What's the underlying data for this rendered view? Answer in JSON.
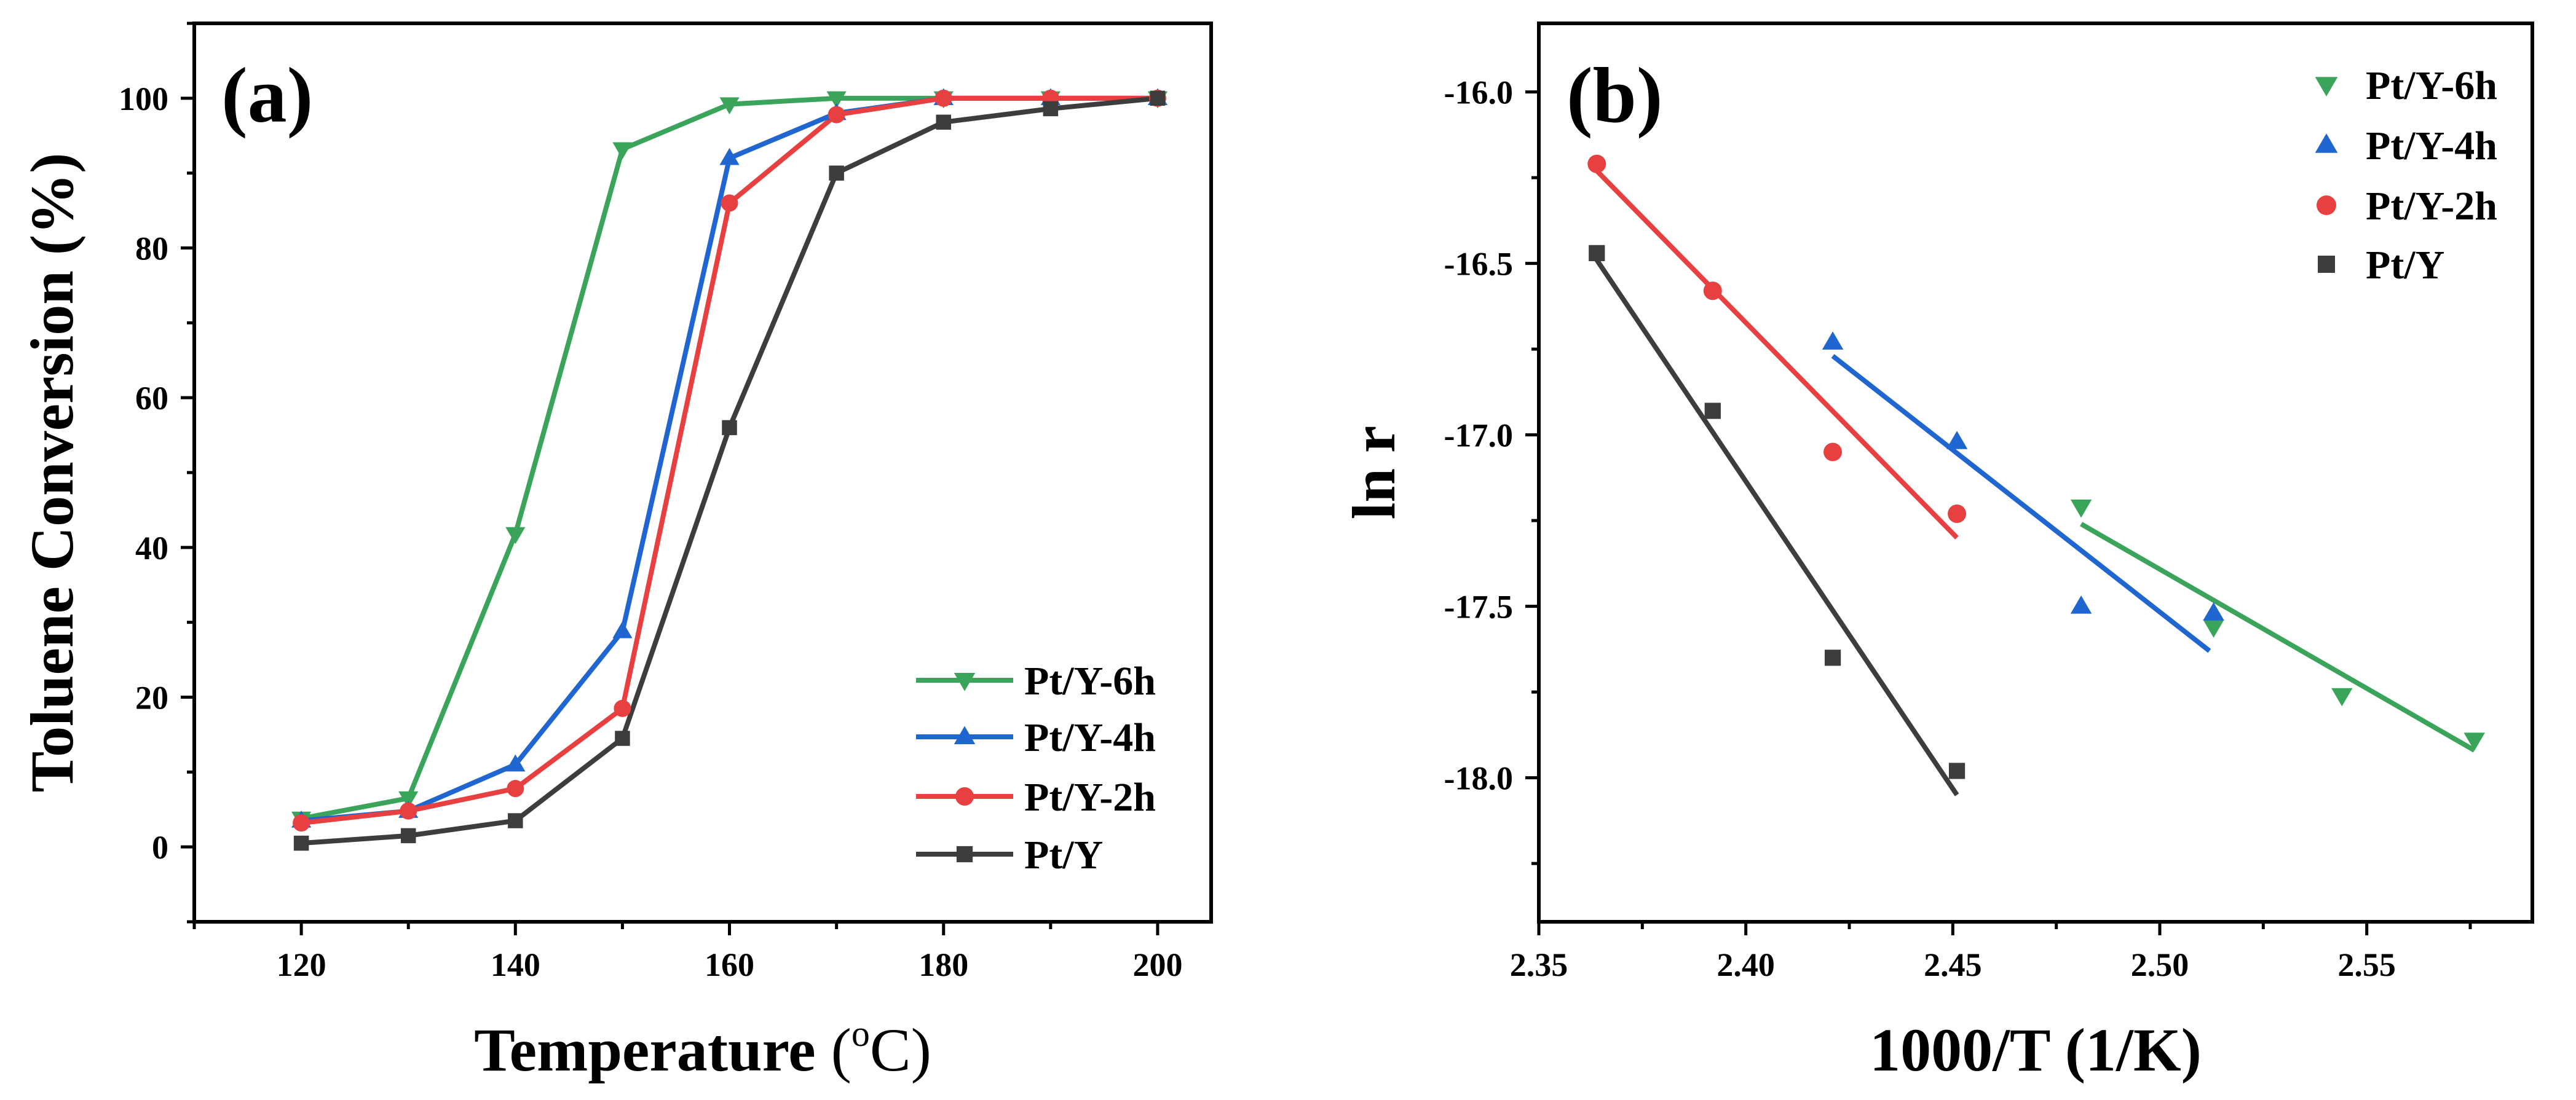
{
  "figure": {
    "colors": {
      "Pt/Y-6h": "#3aa55a",
      "Pt/Y-4h": "#1f66d1",
      "Pt/Y-2h": "#e84040",
      "Pt/Y": "#3d3d3d"
    },
    "markers": {
      "Pt/Y-6h": "triangle-down",
      "Pt/Y-4h": "triangle-up",
      "Pt/Y-2h": "circle",
      "Pt/Y": "square"
    }
  },
  "chart_data": [
    {
      "panel": "(a)",
      "type": "line",
      "title": "",
      "xlabel": "Temperature",
      "xlabel_unit_prefix": "(",
      "xlabel_unit_sup": "o",
      "xlabel_unit_text": "C)",
      "ylabel": "Toluene Conversion (%)",
      "xlim": [
        110,
        205
      ],
      "ylim": [
        -10,
        110
      ],
      "xticks": [
        120,
        140,
        160,
        180,
        200
      ],
      "yticks": [
        0,
        20,
        40,
        60,
        80,
        100
      ],
      "legend_position": "bottom-right",
      "x": [
        120,
        130,
        140,
        150,
        160,
        170,
        180,
        190,
        200
      ],
      "series": [
        {
          "name": "Pt/Y-6h",
          "values": [
            3.8,
            6.5,
            41.8,
            93.2,
            99.2,
            100,
            100,
            100,
            100
          ]
        },
        {
          "name": "Pt/Y-4h",
          "values": [
            3.5,
            4.8,
            11.0,
            28.8,
            92.0,
            98.0,
            100,
            100,
            100
          ]
        },
        {
          "name": "Pt/Y-2h",
          "values": [
            3.2,
            4.8,
            7.8,
            18.5,
            86.0,
            97.8,
            100,
            100,
            100
          ]
        },
        {
          "name": "Pt/Y",
          "values": [
            0.5,
            1.5,
            3.5,
            14.5,
            56.0,
            90.0,
            96.8,
            98.6,
            100
          ]
        }
      ]
    },
    {
      "panel": "(b)",
      "type": "scatter",
      "title": "",
      "xlabel": "1000/T (1/K)",
      "ylabel": "ln r",
      "xlim": [
        2.35,
        2.59
      ],
      "ylim": [
        -18.42,
        -15.8
      ],
      "xticks": [
        2.35,
        2.4,
        2.45,
        2.5,
        2.55
      ],
      "yticks": [
        -18.0,
        -17.5,
        -17.0,
        -16.5,
        -16.0
      ],
      "legend_position": "top-right",
      "series": [
        {
          "name": "Pt/Y-6h",
          "points": [
            [
              2.481,
              -17.21
            ],
            [
              2.513,
              -17.56
            ],
            [
              2.544,
              -17.76
            ],
            [
              2.576,
              -17.89
            ]
          ],
          "fit": [
            [
              2.481,
              -17.26
            ],
            [
              2.576,
              -17.92
            ]
          ]
        },
        {
          "name": "Pt/Y-4h",
          "points": [
            [
              2.421,
              -16.73
            ],
            [
              2.451,
              -17.02
            ],
            [
              2.481,
              -17.5
            ],
            [
              2.513,
              -17.52
            ]
          ],
          "fit": [
            [
              2.421,
              -16.77
            ],
            [
              2.512,
              -17.63
            ]
          ]
        },
        {
          "name": "Pt/Y-2h",
          "points": [
            [
              2.364,
              -16.21
            ],
            [
              2.392,
              -16.58
            ],
            [
              2.421,
              -17.05
            ],
            [
              2.451,
              -17.23
            ]
          ],
          "fit": [
            [
              2.364,
              -16.23
            ],
            [
              2.451,
              -17.3
            ]
          ]
        },
        {
          "name": "Pt/Y",
          "points": [
            [
              2.364,
              -16.47
            ],
            [
              2.392,
              -16.93
            ],
            [
              2.421,
              -17.65
            ],
            [
              2.451,
              -17.98
            ]
          ],
          "fit": [
            [
              2.364,
              -16.49
            ],
            [
              2.451,
              -18.05
            ]
          ]
        }
      ]
    }
  ]
}
